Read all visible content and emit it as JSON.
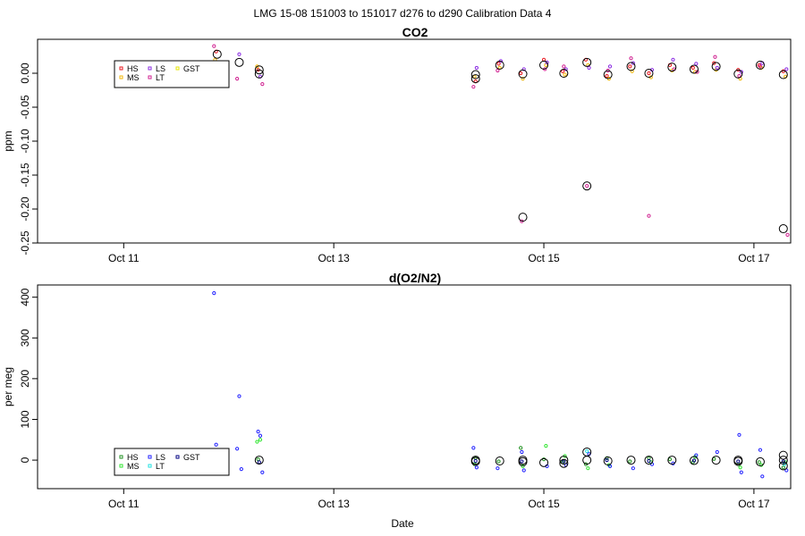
{
  "figure": {
    "suptitle": "LMG   15-08    151003 to 151017    d276 to d290   Calibration Data 4",
    "xlabel": "Date"
  },
  "chart_data": [
    {
      "type": "scatter",
      "title": "CO2",
      "ylabel": "ppm",
      "xlabel": "",
      "x_unit": "days since Oct 10",
      "xlim": [
        0.18,
        7.35
      ],
      "ylim": [
        -0.25,
        0.05
      ],
      "x_ticks": [
        {
          "x": 1,
          "label": "Oct 11"
        },
        {
          "x": 3,
          "label": "Oct 13"
        },
        {
          "x": 5,
          "label": "Oct 15"
        },
        {
          "x": 7,
          "label": "Oct 17"
        }
      ],
      "y_ticks": [
        {
          "y": 0.0,
          "label": "0.00"
        },
        {
          "y": -0.05,
          "label": "-0.05"
        },
        {
          "y": -0.1,
          "label": "-0.10"
        },
        {
          "y": -0.15,
          "label": "-0.15"
        },
        {
          "y": -0.2,
          "label": "-0.20"
        },
        {
          "y": -0.25,
          "label": "-0.25"
        }
      ],
      "legend": {
        "placement": "top-left",
        "entries": [
          {
            "name": "HS",
            "color": "#e8141c"
          },
          {
            "name": "MS",
            "color": "#f2b705"
          },
          {
            "name": "LS",
            "color": "#8a2be2"
          },
          {
            "name": "LT",
            "color": "#d02090"
          },
          {
            "name": "GST",
            "color": "#e6e600"
          }
        ]
      },
      "series": [
        {
          "name": "HS",
          "color": "#e8141c",
          "points": [
            [
              1.88,
              0.032
            ],
            [
              2.28,
              0.005
            ],
            [
              4.35,
              -0.012
            ],
            [
              4.57,
              0.014
            ],
            [
              4.78,
              0.0
            ],
            [
              5.0,
              0.02
            ],
            [
              5.18,
              0.003
            ],
            [
              5.4,
              0.02
            ],
            [
              5.6,
              -0.004
            ],
            [
              5.82,
              0.01
            ],
            [
              6.0,
              0.0
            ],
            [
              6.2,
              0.012
            ],
            [
              6.42,
              0.008
            ],
            [
              6.62,
              0.015
            ],
            [
              6.85,
              0.005
            ],
            [
              7.05,
              0.012
            ],
            [
              7.28,
              0.003
            ]
          ]
        },
        {
          "name": "MS",
          "color": "#f2b705",
          "points": [
            [
              1.87,
              0.02
            ],
            [
              2.27,
              0.01
            ],
            [
              4.34,
              -0.005
            ],
            [
              4.58,
              0.008
            ],
            [
              4.8,
              -0.008
            ],
            [
              5.02,
              0.012
            ],
            [
              5.2,
              -0.002
            ],
            [
              5.42,
              0.012
            ],
            [
              5.62,
              -0.008
            ],
            [
              5.84,
              0.003
            ],
            [
              6.02,
              -0.006
            ],
            [
              6.22,
              0.004
            ],
            [
              6.44,
              0.002
            ],
            [
              6.64,
              0.005
            ],
            [
              6.87,
              -0.008
            ],
            [
              7.07,
              0.008
            ],
            [
              7.3,
              -0.005
            ]
          ]
        },
        {
          "name": "LS",
          "color": "#8a2be2",
          "points": [
            [
              1.9,
              0.012
            ],
            [
              2.1,
              0.028
            ],
            [
              2.3,
              -0.005
            ],
            [
              4.36,
              0.008
            ],
            [
              4.59,
              0.018
            ],
            [
              4.81,
              0.006
            ],
            [
              5.03,
              0.016
            ],
            [
              5.21,
              0.006
            ],
            [
              5.43,
              0.008
            ],
            [
              5.63,
              0.01
            ],
            [
              5.85,
              0.015
            ],
            [
              6.03,
              0.005
            ],
            [
              6.23,
              0.02
            ],
            [
              6.45,
              0.014
            ],
            [
              6.65,
              0.008
            ],
            [
              6.88,
              0.002
            ],
            [
              7.08,
              0.015
            ],
            [
              7.31,
              0.006
            ]
          ]
        },
        {
          "name": "LT",
          "color": "#d02090",
          "points": [
            [
              1.86,
              0.04
            ],
            [
              2.08,
              -0.008
            ],
            [
              2.32,
              -0.016
            ],
            [
              4.33,
              -0.02
            ],
            [
              4.56,
              0.004
            ],
            [
              4.79,
              -0.218
            ],
            [
              5.01,
              0.006
            ],
            [
              5.19,
              0.01
            ],
            [
              5.41,
              -0.166
            ],
            [
              5.61,
              0.004
            ],
            [
              5.83,
              0.022
            ],
            [
              6.0,
              -0.21
            ],
            [
              6.24,
              0.006
            ],
            [
              6.46,
              0.002
            ],
            [
              6.63,
              0.024
            ],
            [
              6.86,
              -0.004
            ],
            [
              7.06,
              0.01
            ],
            [
              7.32,
              -0.238
            ]
          ]
        },
        {
          "name": "GST",
          "color": "#e6e600",
          "points": []
        }
      ],
      "means": [
        [
          1.89,
          0.028
        ],
        [
          1.89,
          0.009
        ],
        [
          2.1,
          0.016
        ],
        [
          2.29,
          0.005
        ],
        [
          2.29,
          -0.001
        ],
        [
          4.35,
          -0.002
        ],
        [
          4.35,
          -0.008
        ],
        [
          4.58,
          0.012
        ],
        [
          4.8,
          -0.001
        ],
        [
          4.8,
          -0.212
        ],
        [
          5.0,
          0.012
        ],
        [
          5.19,
          0.0
        ],
        [
          5.41,
          0.016
        ],
        [
          5.41,
          -0.166
        ],
        [
          5.61,
          -0.002
        ],
        [
          5.83,
          0.01
        ],
        [
          6.0,
          0.0
        ],
        [
          6.22,
          0.009
        ],
        [
          6.43,
          0.006
        ],
        [
          6.64,
          0.01
        ],
        [
          6.85,
          -0.001
        ],
        [
          7.06,
          0.012
        ],
        [
          7.28,
          -0.002
        ],
        [
          7.28,
          -0.229
        ]
      ]
    },
    {
      "type": "scatter",
      "title": "d(O2/N2)",
      "ylabel": "per meg",
      "xlabel": "Date",
      "x_unit": "days since Oct 10",
      "xlim": [
        0.18,
        7.35
      ],
      "ylim": [
        -70,
        430
      ],
      "x_ticks": [
        {
          "x": 1,
          "label": "Oct 11"
        },
        {
          "x": 3,
          "label": "Oct 13"
        },
        {
          "x": 5,
          "label": "Oct 15"
        },
        {
          "x": 7,
          "label": "Oct 17"
        }
      ],
      "y_ticks": [
        {
          "y": 0,
          "label": "0"
        },
        {
          "y": 100,
          "label": "100"
        },
        {
          "y": 200,
          "label": "200"
        },
        {
          "y": 300,
          "label": "300"
        },
        {
          "y": 400,
          "label": "400"
        }
      ],
      "legend": {
        "placement": "bottom-left",
        "entries": [
          {
            "name": "HS",
            "color": "#1f8f1f"
          },
          {
            "name": "MS",
            "color": "#2ee62e"
          },
          {
            "name": "LS",
            "color": "#1f1fff"
          },
          {
            "name": "LT",
            "color": "#1fe0e0"
          },
          {
            "name": "GST",
            "color": "#000080"
          }
        ]
      },
      "series": [
        {
          "name": "HS",
          "color": "#1f8f1f",
          "points": [
            [
              1.88,
              0
            ],
            [
              2.28,
              2
            ],
            [
              4.35,
              5
            ],
            [
              4.57,
              -3
            ],
            [
              4.78,
              30
            ],
            [
              5.0,
              2
            ],
            [
              5.18,
              -5
            ],
            [
              5.4,
              -10
            ],
            [
              5.6,
              5
            ],
            [
              5.82,
              -3
            ],
            [
              6.0,
              5
            ],
            [
              6.2,
              2
            ],
            [
              6.42,
              -5
            ],
            [
              6.62,
              3
            ],
            [
              6.85,
              -10
            ],
            [
              7.05,
              -5
            ],
            [
              7.28,
              -18
            ]
          ]
        },
        {
          "name": "MS",
          "color": "#2ee62e",
          "points": [
            [
              2.27,
              45
            ],
            [
              2.3,
              50
            ],
            [
              4.34,
              -10
            ],
            [
              4.8,
              -15
            ],
            [
              5.02,
              35
            ],
            [
              5.2,
              10
            ],
            [
              5.42,
              -20
            ],
            [
              5.62,
              -12
            ],
            [
              6.02,
              -5
            ],
            [
              6.44,
              8
            ],
            [
              6.87,
              -18
            ],
            [
              7.07,
              -12
            ],
            [
              7.3,
              -5
            ]
          ]
        },
        {
          "name": "LS",
          "color": "#1f1fff",
          "points": [
            [
              1.86,
              410
            ],
            [
              1.88,
              38
            ],
            [
              1.9,
              -5
            ],
            [
              2.1,
              157
            ],
            [
              2.08,
              28
            ],
            [
              2.12,
              -22
            ],
            [
              2.28,
              70
            ],
            [
              2.3,
              60
            ],
            [
              2.32,
              -30
            ],
            [
              4.33,
              30
            ],
            [
              4.36,
              -18
            ],
            [
              4.56,
              -20
            ],
            [
              4.79,
              20
            ],
            [
              4.81,
              -25
            ],
            [
              5.03,
              -15
            ],
            [
              5.21,
              -12
            ],
            [
              5.43,
              15
            ],
            [
              5.63,
              -15
            ],
            [
              5.85,
              -20
            ],
            [
              6.03,
              -10
            ],
            [
              6.23,
              -8
            ],
            [
              6.45,
              12
            ],
            [
              6.65,
              20
            ],
            [
              6.86,
              62
            ],
            [
              6.88,
              -30
            ],
            [
              7.06,
              25
            ],
            [
              7.08,
              -40
            ],
            [
              7.31,
              -25
            ]
          ]
        },
        {
          "name": "LT",
          "color": "#1fe0e0",
          "points": [
            [
              5.41,
              22
            ],
            [
              7.29,
              -10
            ]
          ]
        },
        {
          "name": "GST",
          "color": "#000080",
          "points": [
            [
              1.87,
              -2
            ],
            [
              2.29,
              -5
            ],
            [
              4.35,
              -2
            ],
            [
              4.79,
              -3
            ],
            [
              5.19,
              -3
            ],
            [
              5.6,
              0
            ],
            [
              6.0,
              -2
            ],
            [
              6.43,
              -1
            ],
            [
              6.85,
              -3
            ],
            [
              7.28,
              -3
            ]
          ]
        }
      ],
      "means": [
        [
          1.89,
          0
        ],
        [
          2.29,
          0
        ],
        [
          4.35,
          0
        ],
        [
          4.35,
          -3
        ],
        [
          4.58,
          -2
        ],
        [
          4.8,
          0
        ],
        [
          4.8,
          -4
        ],
        [
          5.0,
          -6
        ],
        [
          5.19,
          0
        ],
        [
          5.19,
          -8
        ],
        [
          5.41,
          0
        ],
        [
          5.41,
          20
        ],
        [
          5.61,
          -2
        ],
        [
          5.83,
          0
        ],
        [
          6.0,
          0
        ],
        [
          6.22,
          0
        ],
        [
          6.43,
          -1
        ],
        [
          6.64,
          0
        ],
        [
          6.85,
          0
        ],
        [
          6.85,
          -3
        ],
        [
          7.06,
          -4
        ],
        [
          7.28,
          -14
        ],
        [
          7.28,
          12
        ],
        [
          7.28,
          0
        ]
      ]
    }
  ]
}
